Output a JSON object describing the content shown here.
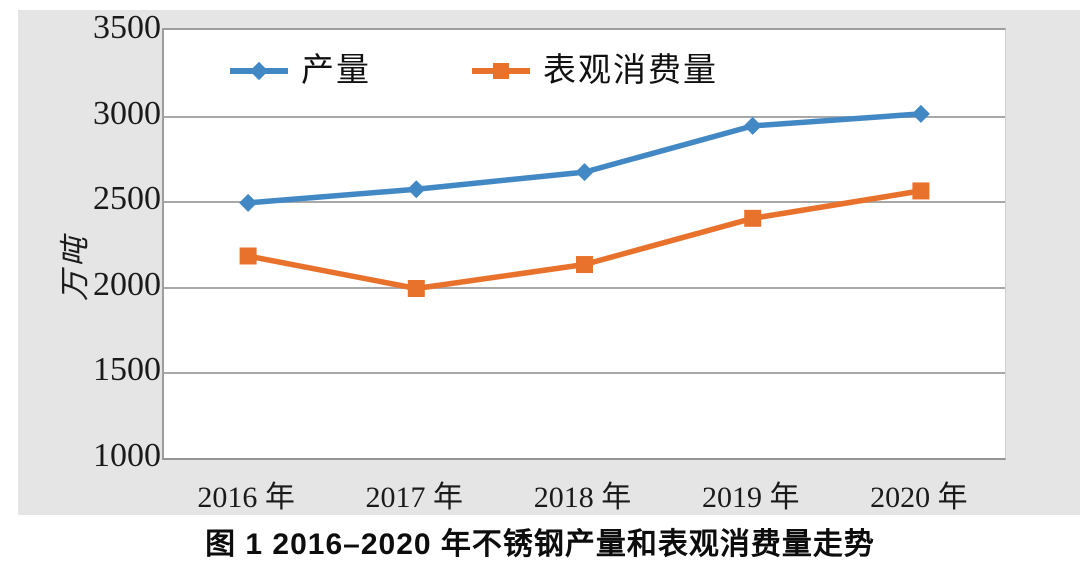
{
  "figure_caption": "图 1 2016–2020 年不锈钢产量和表观消费量走势",
  "chart_data": {
    "type": "line",
    "title": "",
    "xlabel": "",
    "ylabel": "万吨",
    "categories": [
      "2016 年",
      "2017 年",
      "2018 年",
      "2019 年",
      "2020 年"
    ],
    "series": [
      {
        "name": "产量",
        "color": "#4288c5",
        "marker": "diamond",
        "values": [
          2490,
          2570,
          2670,
          2940,
          3010
        ]
      },
      {
        "name": "表观消费量",
        "color": "#e8722c",
        "marker": "square",
        "values": [
          2180,
          1990,
          2130,
          2400,
          2560
        ]
      }
    ],
    "ylim": [
      1000,
      3500
    ],
    "ytick_step": 500,
    "yticks": [
      3500,
      3000,
      2500,
      2000,
      1500,
      1000
    ],
    "grid": true,
    "legend_position": "top-inside",
    "plot_background": "#ffffff",
    "panel_background": "#e5e5e5",
    "gridline_color": "#a8a8a8",
    "text_color": "#1a1a1a"
  }
}
